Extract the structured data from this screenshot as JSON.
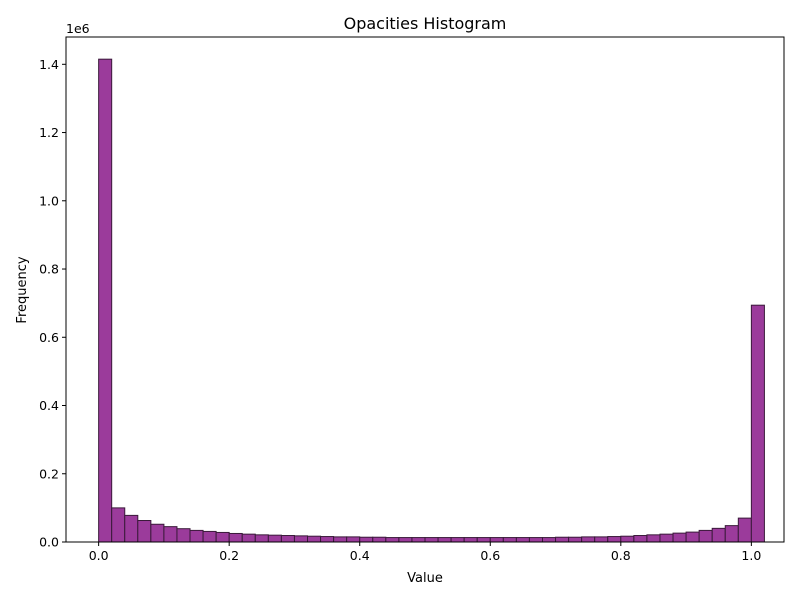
{
  "chart_data": {
    "type": "bar",
    "title": "Opacities Histogram",
    "xlabel": "Value",
    "ylabel": "Frequency",
    "offset_label": "1e6",
    "xlim": [
      -0.05,
      1.05
    ],
    "ylim": [
      0,
      1.48
    ],
    "xticks": [
      0.0,
      0.2,
      0.4,
      0.6,
      0.8,
      1.0
    ],
    "xtick_labels": [
      "0.0",
      "0.2",
      "0.4",
      "0.6",
      "0.8",
      "1.0"
    ],
    "yticks": [
      0.0,
      0.2,
      0.4,
      0.6,
      0.8,
      1.0,
      1.2,
      1.4
    ],
    "ytick_labels": [
      "0.0",
      "0.2",
      "0.4",
      "0.6",
      "0.8",
      "1.0",
      "1.2",
      "1.4"
    ],
    "bin_start": 0.0,
    "bin_width": 0.02,
    "values": [
      1.415,
      0.1,
      0.078,
      0.063,
      0.052,
      0.045,
      0.039,
      0.034,
      0.031,
      0.028,
      0.025,
      0.023,
      0.021,
      0.02,
      0.019,
      0.018,
      0.017,
      0.016,
      0.015,
      0.015,
      0.014,
      0.014,
      0.013,
      0.013,
      0.013,
      0.013,
      0.013,
      0.013,
      0.013,
      0.013,
      0.013,
      0.013,
      0.013,
      0.013,
      0.013,
      0.014,
      0.014,
      0.015,
      0.015,
      0.016,
      0.017,
      0.019,
      0.021,
      0.023,
      0.026,
      0.029,
      0.034,
      0.04,
      0.048,
      0.07,
      0.694
    ],
    "bar_color": "#9b3b9b",
    "edge_color": "#3a1a3a"
  }
}
